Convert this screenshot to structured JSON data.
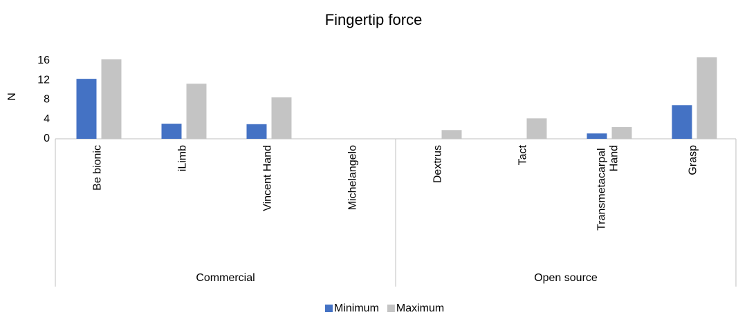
{
  "chart_data": {
    "type": "bar",
    "title": "Fingertip force",
    "y_label": "N",
    "categories": [
      "Be bionic",
      "iLimb",
      "Vincent Hand",
      "Michelangelo",
      "Dextrus",
      "Tact",
      "Transmetacarpal Hand",
      "Grasp"
    ],
    "group_labels": [
      "Commercial",
      "Open source"
    ],
    "series": [
      {
        "name": "Minimum",
        "color": "#4472c4",
        "values": [
          12.3,
          3.1,
          3.0,
          null,
          null,
          null,
          1.1,
          6.9
        ]
      },
      {
        "name": "Maximum",
        "color": "#c4c4c4",
        "values": [
          16.3,
          11.3,
          8.5,
          null,
          1.8,
          4.2,
          2.4,
          16.7
        ]
      }
    ],
    "ylim": [
      0,
      18
    ],
    "yticks": [
      0,
      4,
      8,
      12,
      16
    ],
    "grid": false
  }
}
